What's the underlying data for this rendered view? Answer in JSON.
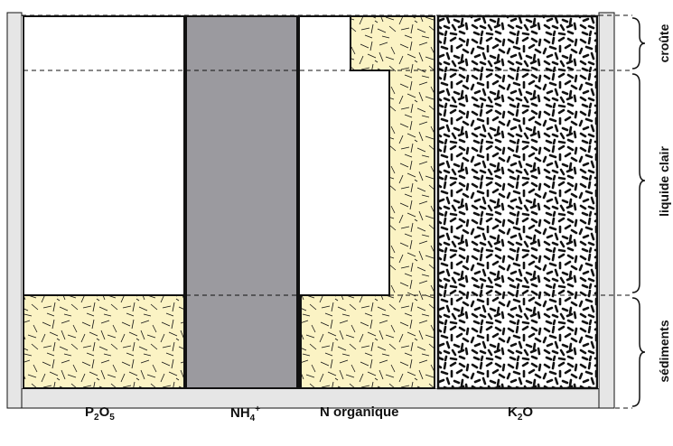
{
  "columns": [
    {
      "base": "P",
      "sub1": "2",
      "mid": "O",
      "sub2": "5"
    },
    {
      "base": "NH",
      "sub1": "4",
      "sup": "+"
    },
    {
      "text": "N organique"
    },
    {
      "base": "K",
      "sub1": "2",
      "mid": "O"
    }
  ],
  "layers": {
    "crust": "croûte",
    "clear_liquid": "liquide clair",
    "sediments": "sédiments"
  },
  "colors": {
    "cream": "#fbf3c4",
    "gray_column": "#9b9a9f",
    "frame_gray": "#e6e6e6",
    "ink": "#111111"
  }
}
